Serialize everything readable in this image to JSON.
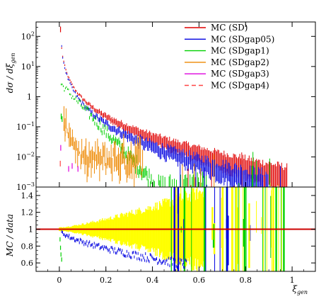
{
  "chart_data": [
    {
      "type": "scatter",
      "panel": "main",
      "ylabel": "dσ / dξ_gen",
      "yscale": "log",
      "ylim": [
        0.001,
        300
      ],
      "xlim": [
        -0.1,
        1.1
      ],
      "yticks": [
        {
          "value": 0.001,
          "label": "10",
          "exp": "−3"
        },
        {
          "value": 0.01,
          "label": "10",
          "exp": "−2"
        },
        {
          "value": 0.1,
          "label": "10",
          "exp": "−1"
        },
        {
          "value": 1,
          "label": "1",
          "exp": ""
        },
        {
          "value": 10,
          "label": "10",
          "exp": "1"
        },
        {
          "value": 100,
          "label": "10",
          "exp": "2"
        }
      ],
      "legend_position": "top-right",
      "series": [
        {
          "name": "MC (SD)",
          "color": "#e00000",
          "style": "solid",
          "shape": "power",
          "y0": 14,
          "p": 1.55,
          "floor": 0.0012,
          "noise": 0.08,
          "xstart": 0.01,
          "xend": 0.98,
          "points": [
            [
              0.005,
              170
            ]
          ]
        },
        {
          "name": "MC (SDgap05)",
          "color": "#0000e0",
          "style": "solid",
          "shape": "power",
          "y0": 13,
          "p": 1.75,
          "floor": 0.0011,
          "noise": 0.12,
          "xstart": 0.01,
          "xend": 0.9,
          "points": []
        },
        {
          "name": "MC (SDgap1)",
          "color": "#00d000",
          "style": "solid",
          "shape": "exp",
          "y0": 3.0,
          "k": 19,
          "floor": 0.001,
          "noise": 0.25,
          "xstart": 0.008,
          "xend": 0.62,
          "points": [
            [
              0.008,
              0.22
            ],
            [
              0.012,
              0.18
            ]
          ]
        },
        {
          "name": "MC (SDgap2)",
          "color": "#ee8800",
          "style": "solid",
          "shape": "spikes",
          "y0": 0.35,
          "k": 40,
          "floor": 0.008,
          "noise": 0.5,
          "xstart": 0.02,
          "xend": 0.36,
          "points": [
            [
              0.02,
              0.09
            ],
            [
              0.025,
              0.06
            ]
          ]
        },
        {
          "name": "MC (SDgap3)",
          "color": "#dd00dd",
          "style": "solid",
          "shape": "few",
          "y0": 0.01,
          "k": 0,
          "floor": 0.004,
          "noise": 0.3,
          "xstart": 0.0,
          "xend": 0.1,
          "points": [
            [
              0.006,
              0.02
            ],
            [
              0.04,
              0.004
            ],
            [
              0.055,
              0.005
            ],
            [
              0.08,
              0.004
            ]
          ]
        },
        {
          "name": "MC (SDgap4)",
          "color": "#ff4444",
          "style": "dashed",
          "shape": "few",
          "y0": 0.005,
          "k": 0,
          "floor": 0.003,
          "noise": 0.3,
          "xstart": 0.0,
          "xend": 0.05,
          "points": [
            [
              0.004,
              0.006
            ]
          ]
        }
      ]
    },
    {
      "type": "scatter",
      "panel": "ratio",
      "ylabel": "MC / data",
      "ylim": [
        0.5,
        1.5
      ],
      "xlabel": "ξ_gen",
      "xlim": [
        -0.1,
        1.1
      ],
      "yticks": [
        {
          "value": 0.6,
          "label": "0.6"
        },
        {
          "value": 0.8,
          "label": "0.8"
        },
        {
          "value": 1,
          "label": "1"
        },
        {
          "value": 1.2,
          "label": "1.2"
        },
        {
          "value": 1.4,
          "label": "1.4"
        }
      ],
      "xticks": [
        {
          "value": 0,
          "label": "0"
        },
        {
          "value": 0.2,
          "label": "0.2"
        },
        {
          "value": 0.4,
          "label": "0.4"
        },
        {
          "value": 0.6,
          "label": "0.6"
        },
        {
          "value": 0.8,
          "label": "0.8"
        },
        {
          "value": 1,
          "label": "1"
        }
      ],
      "uncertainty_band": {
        "color": "#ffff00",
        "from": 0.0,
        "to": 0.62,
        "width_at_start": 0.02,
        "width_at_end": 0.45
      },
      "reference_line": {
        "value": 1,
        "color": "#cc0000"
      },
      "series": [
        {
          "name": "MC (SD)",
          "color": "#e00000",
          "ratio_shape": "flat"
        },
        {
          "name": "MC (SDgap05)",
          "color": "#0000e0",
          "ratio_shape": "falling",
          "from": 1.0,
          "to": 0.58,
          "xend": 0.55
        },
        {
          "name": "MC (SDgap1)",
          "color": "#00d000",
          "ratio_shape": "points",
          "points": [
            [
              0.003,
              0.88
            ],
            [
              0.005,
              0.78
            ],
            [
              0.007,
              0.7
            ],
            [
              0.01,
              0.64
            ]
          ]
        }
      ]
    }
  ],
  "labels": {
    "ylabel_main_base": "dσ / dξ",
    "ylabel_main_sub": "gen",
    "ylabel_ratio": "MC / data",
    "xlabel_base": "ξ",
    "xlabel_sub": "gen"
  }
}
